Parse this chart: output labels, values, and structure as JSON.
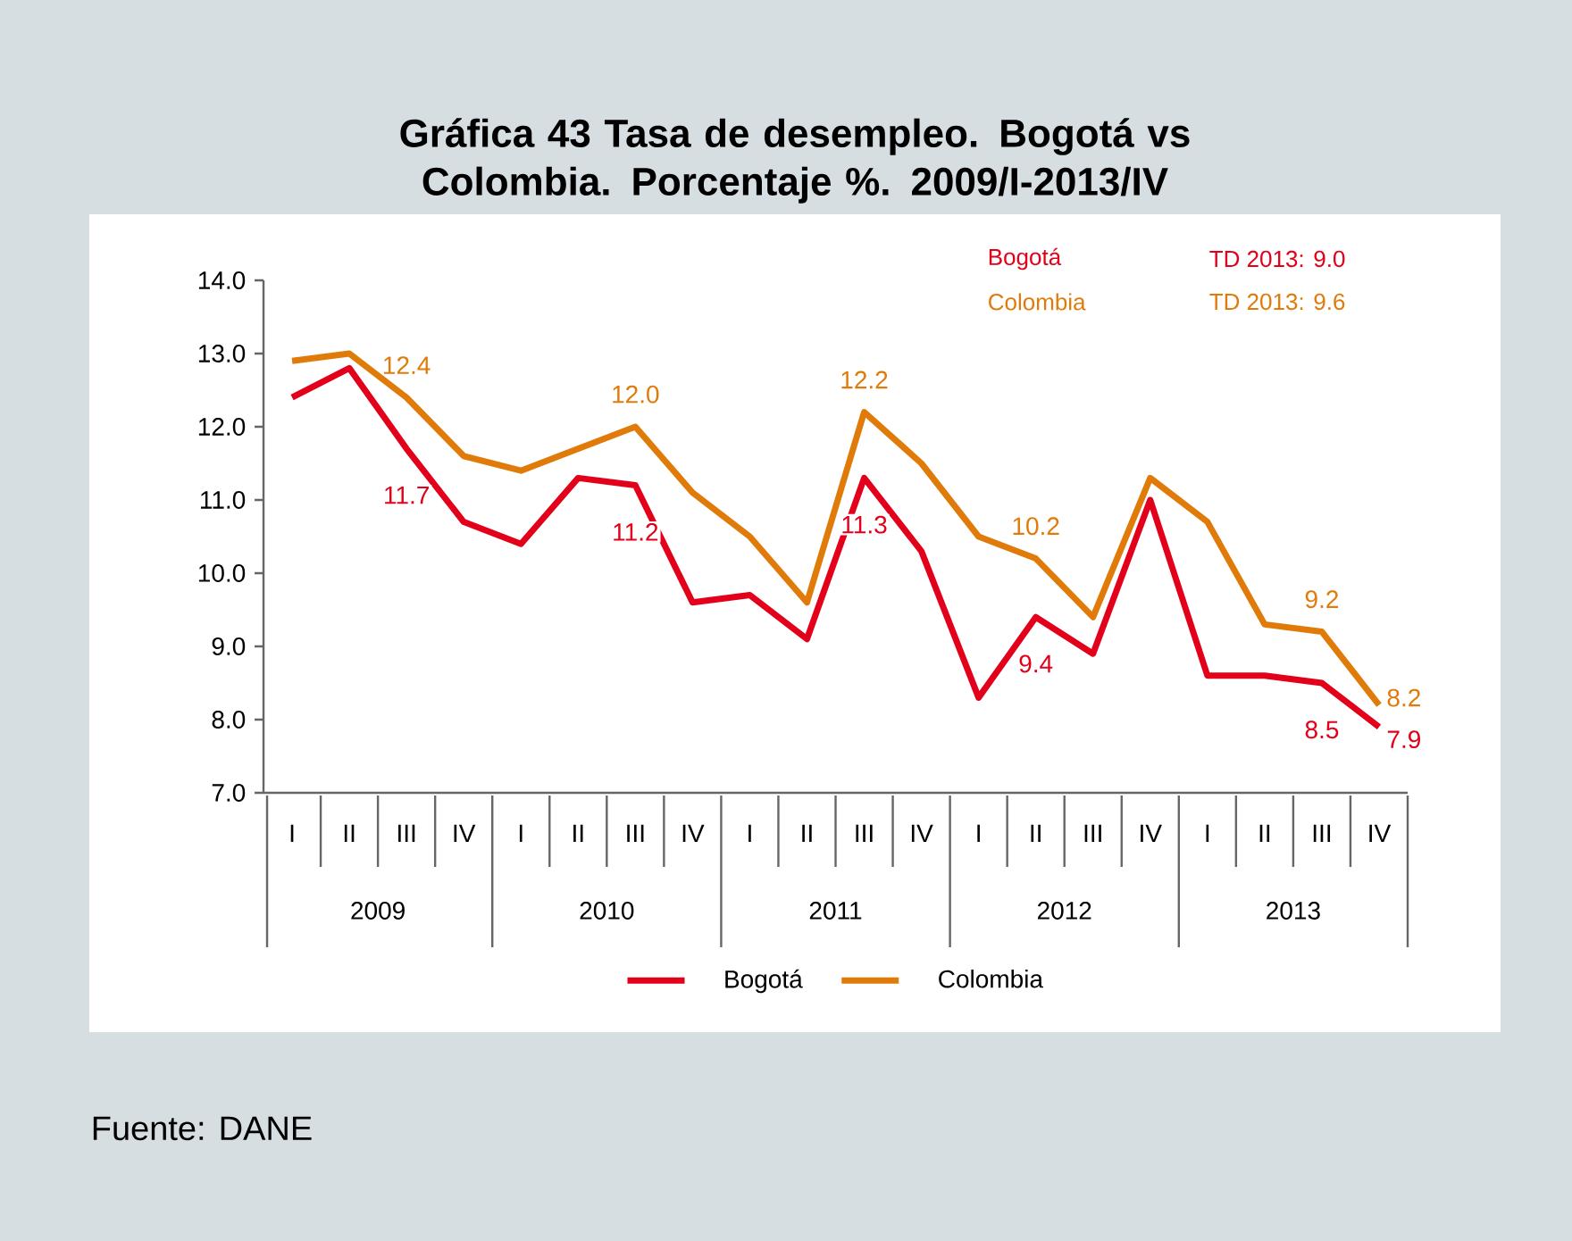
{
  "chart_data": {
    "type": "line",
    "title": "Gráfica 43 Tasa de desempleo. Bogotá vs Colombia. Porcentaje %. 2009/I-2013/IV",
    "categories": [
      "I",
      "II",
      "III",
      "IV",
      "I",
      "II",
      "III",
      "IV",
      "I",
      "II",
      "III",
      "IV",
      "I",
      "II",
      "III",
      "IV",
      "I",
      "II",
      "III",
      "IV"
    ],
    "series": [
      {
        "name": "Bogotá",
        "color": "#e2001a",
        "values": [
          12.4,
          12.8,
          11.7,
          10.7,
          10.4,
          11.3,
          11.2,
          9.6,
          9.7,
          9.1,
          11.3,
          10.3,
          8.3,
          9.4,
          8.9,
          11.0,
          8.6,
          8.6,
          8.5,
          7.9
        ],
        "value_labels": [
          null,
          null,
          "11.7",
          null,
          null,
          null,
          "11.2",
          null,
          null,
          null,
          "11.3",
          null,
          null,
          "9.4",
          null,
          null,
          null,
          null,
          "8.5",
          "7.9"
        ]
      },
      {
        "name": "Colombia",
        "color": "#e07b0a",
        "values": [
          12.9,
          13.0,
          12.4,
          11.6,
          11.4,
          11.7,
          12.0,
          11.1,
          10.5,
          9.6,
          12.2,
          11.5,
          10.5,
          10.2,
          9.4,
          11.3,
          10.7,
          9.3,
          9.2,
          8.2
        ],
        "value_labels": [
          null,
          null,
          "12.4",
          null,
          null,
          null,
          "12.0",
          null,
          null,
          null,
          "12.2",
          null,
          null,
          "10.2",
          null,
          null,
          null,
          null,
          "9.2",
          "8.2"
        ]
      }
    ],
    "ylim": [
      7,
      14
    ],
    "yticks": [
      {
        "value": 7,
        "label": "7.0"
      },
      {
        "value": 8,
        "label": "8.0"
      },
      {
        "value": 9,
        "label": "9.0"
      },
      {
        "value": 10,
        "label": "10.0"
      },
      {
        "value": 11,
        "label": "11.0"
      },
      {
        "value": 12,
        "label": "12.0"
      },
      {
        "value": 13,
        "label": "13.0"
      },
      {
        "value": 14,
        "label": "14.0"
      }
    ],
    "annotations": [
      "Bogotá",
      "TD 2013: 9.0",
      "Colombia",
      "TD 2013: 9.6",
      "2009",
      "2010",
      "2011",
      "2012",
      "2013",
      "Fuente: DANE"
    ],
    "grid": false,
    "legend": "bottom",
    "marker": "none",
    "line_style": "solid"
  }
}
